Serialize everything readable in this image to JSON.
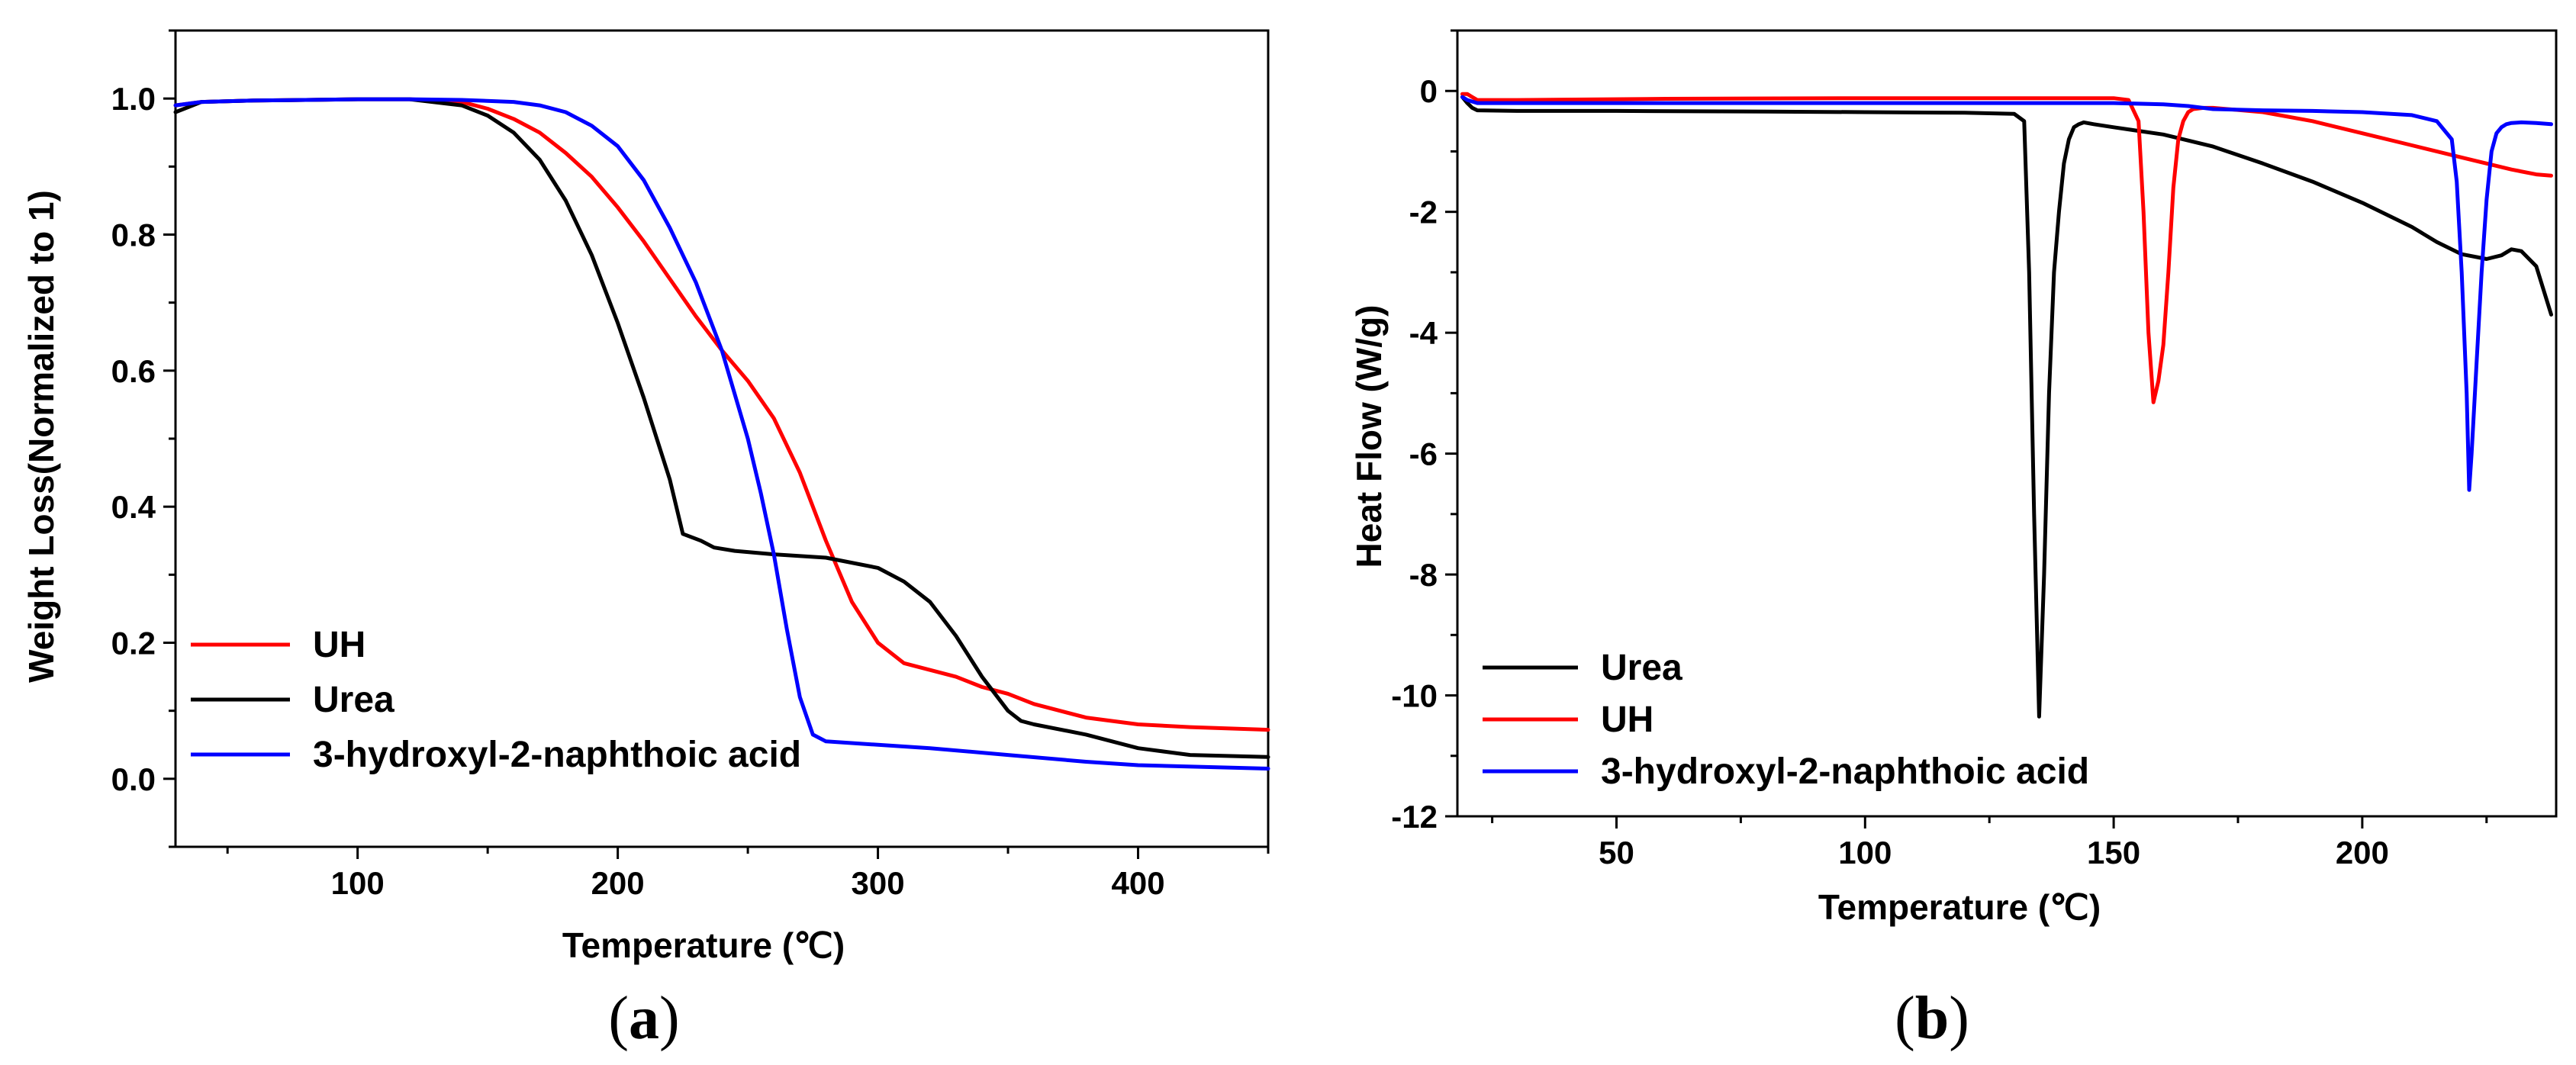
{
  "chart_data": [
    {
      "type": "line",
      "panel_label": "a",
      "title": "",
      "xlabel": "Temperature (℃)",
      "ylabel": "Weight Loss(Normalized to 1)",
      "xlim": [
        30,
        450
      ],
      "ylim": [
        -0.1,
        1.1
      ],
      "xticks": [
        100,
        200,
        300,
        400
      ],
      "yticks": [
        "0.0",
        "0.2",
        "0.4",
        "0.6",
        "0.8",
        "1.0"
      ],
      "ytick_values": [
        0,
        0.2,
        0.4,
        0.6,
        0.8,
        1.0
      ],
      "legend_position": "bottom-left",
      "series": [
        {
          "name": "UH",
          "color": "#ff0000",
          "x": [
            30,
            40,
            60,
            80,
            100,
            120,
            140,
            150,
            160,
            170,
            180,
            190,
            200,
            210,
            220,
            230,
            240,
            250,
            260,
            270,
            280,
            290,
            300,
            310,
            320,
            330,
            340,
            350,
            360,
            380,
            400,
            420,
            450
          ],
          "y": [
            0.99,
            0.995,
            0.997,
            0.998,
            0.999,
            0.999,
            0.995,
            0.985,
            0.97,
            0.95,
            0.92,
            0.885,
            0.84,
            0.79,
            0.735,
            0.68,
            0.63,
            0.585,
            0.53,
            0.45,
            0.35,
            0.26,
            0.2,
            0.17,
            0.16,
            0.15,
            0.135,
            0.125,
            0.11,
            0.09,
            0.08,
            0.076,
            0.072
          ]
        },
        {
          "name": "Urea",
          "color": "#000000",
          "x": [
            30,
            40,
            60,
            80,
            100,
            120,
            140,
            150,
            160,
            170,
            180,
            190,
            200,
            210,
            220,
            225,
            232,
            237,
            245,
            260,
            280,
            300,
            310,
            320,
            330,
            340,
            350,
            355,
            360,
            380,
            400,
            420,
            450
          ],
          "y": [
            0.98,
            0.995,
            0.997,
            0.998,
            0.999,
            0.999,
            0.99,
            0.975,
            0.95,
            0.91,
            0.85,
            0.77,
            0.67,
            0.56,
            0.44,
            0.36,
            0.35,
            0.34,
            0.335,
            0.33,
            0.325,
            0.31,
            0.29,
            0.26,
            0.21,
            0.15,
            0.1,
            0.085,
            0.08,
            0.065,
            0.045,
            0.035,
            0.032
          ]
        },
        {
          "name": "3-hydroxyl-2-naphthoic acid",
          "color": "#0000ff",
          "x": [
            30,
            40,
            60,
            80,
            100,
            120,
            140,
            160,
            170,
            180,
            190,
            200,
            210,
            220,
            230,
            240,
            250,
            255,
            260,
            265,
            270,
            275,
            280,
            300,
            320,
            350,
            380,
            400,
            450
          ],
          "y": [
            0.99,
            0.995,
            0.997,
            0.998,
            0.999,
            0.999,
            0.998,
            0.995,
            0.99,
            0.98,
            0.96,
            0.93,
            0.88,
            0.81,
            0.73,
            0.63,
            0.5,
            0.42,
            0.33,
            0.22,
            0.12,
            0.065,
            0.055,
            0.05,
            0.045,
            0.035,
            0.025,
            0.02,
            0.015
          ]
        }
      ]
    },
    {
      "type": "line",
      "panel_label": "b",
      "title": "",
      "xlabel": "Temperature (℃)",
      "ylabel": "Heat Flow (W/g)",
      "xlim": [
        18,
        239
      ],
      "ylim": [
        -12,
        1
      ],
      "xticks": [
        50,
        100,
        150,
        200
      ],
      "yticks": [
        "-12",
        "-10",
        "-8",
        "-6",
        "-4",
        "-2",
        "0"
      ],
      "ytick_values": [
        -12,
        -10,
        -8,
        -6,
        -4,
        -2,
        0
      ],
      "legend_position": "bottom-left",
      "series": [
        {
          "name": "Urea",
          "color": "#000000",
          "x": [
            19,
            20,
            21,
            22,
            30,
            50,
            80,
            100,
            120,
            130,
            132,
            133,
            134,
            135,
            136,
            137,
            138,
            139,
            140,
            141,
            142,
            143,
            144,
            146,
            150,
            160,
            170,
            180,
            190,
            200,
            210,
            215,
            220,
            225,
            228,
            230,
            232,
            235,
            238
          ],
          "y": [
            -0.1,
            -0.2,
            -0.28,
            -0.32,
            -0.33,
            -0.33,
            -0.34,
            -0.35,
            -0.36,
            -0.38,
            -0.5,
            -3.0,
            -7.0,
            -10.35,
            -8.0,
            -5.0,
            -3.0,
            -2.0,
            -1.2,
            -0.8,
            -0.6,
            -0.55,
            -0.52,
            -0.55,
            -0.6,
            -0.72,
            -0.92,
            -1.2,
            -1.5,
            -1.85,
            -2.25,
            -2.5,
            -2.7,
            -2.78,
            -2.72,
            -2.62,
            -2.65,
            -2.9,
            -3.7
          ]
        },
        {
          "name": "UH",
          "color": "#ff0000",
          "x": [
            19,
            20,
            21,
            22,
            23,
            30,
            60,
            100,
            130,
            150,
            153,
            155,
            156,
            157,
            158,
            159,
            160,
            161,
            162,
            163,
            164,
            165,
            166,
            168,
            170,
            180,
            190,
            200,
            210,
            220,
            230,
            235,
            238
          ],
          "y": [
            -0.05,
            -0.05,
            -0.1,
            -0.15,
            -0.15,
            -0.15,
            -0.13,
            -0.12,
            -0.12,
            -0.12,
            -0.15,
            -0.5,
            -2.0,
            -4.0,
            -5.15,
            -4.8,
            -4.2,
            -3.0,
            -1.6,
            -0.8,
            -0.5,
            -0.35,
            -0.3,
            -0.28,
            -0.28,
            -0.35,
            -0.5,
            -0.7,
            -0.9,
            -1.1,
            -1.3,
            -1.38,
            -1.4
          ]
        },
        {
          "name": "3-hydroxyl-2-naphthoic acid",
          "color": "#0000ff",
          "x": [
            19,
            20,
            22,
            30,
            60,
            100,
            150,
            160,
            165,
            170,
            180,
            190,
            200,
            210,
            215,
            218,
            219,
            220,
            221,
            221.5,
            222,
            223,
            224,
            225,
            226,
            227,
            228,
            229,
            230,
            232,
            235,
            238
          ],
          "y": [
            -0.1,
            -0.15,
            -0.2,
            -0.2,
            -0.2,
            -0.2,
            -0.2,
            -0.22,
            -0.25,
            -0.3,
            -0.32,
            -0.33,
            -0.35,
            -0.4,
            -0.5,
            -0.8,
            -1.5,
            -3.0,
            -5.0,
            -6.6,
            -6.0,
            -4.5,
            -3.0,
            -1.8,
            -1.0,
            -0.7,
            -0.6,
            -0.55,
            -0.53,
            -0.52,
            -0.53,
            -0.55
          ]
        }
      ]
    }
  ]
}
